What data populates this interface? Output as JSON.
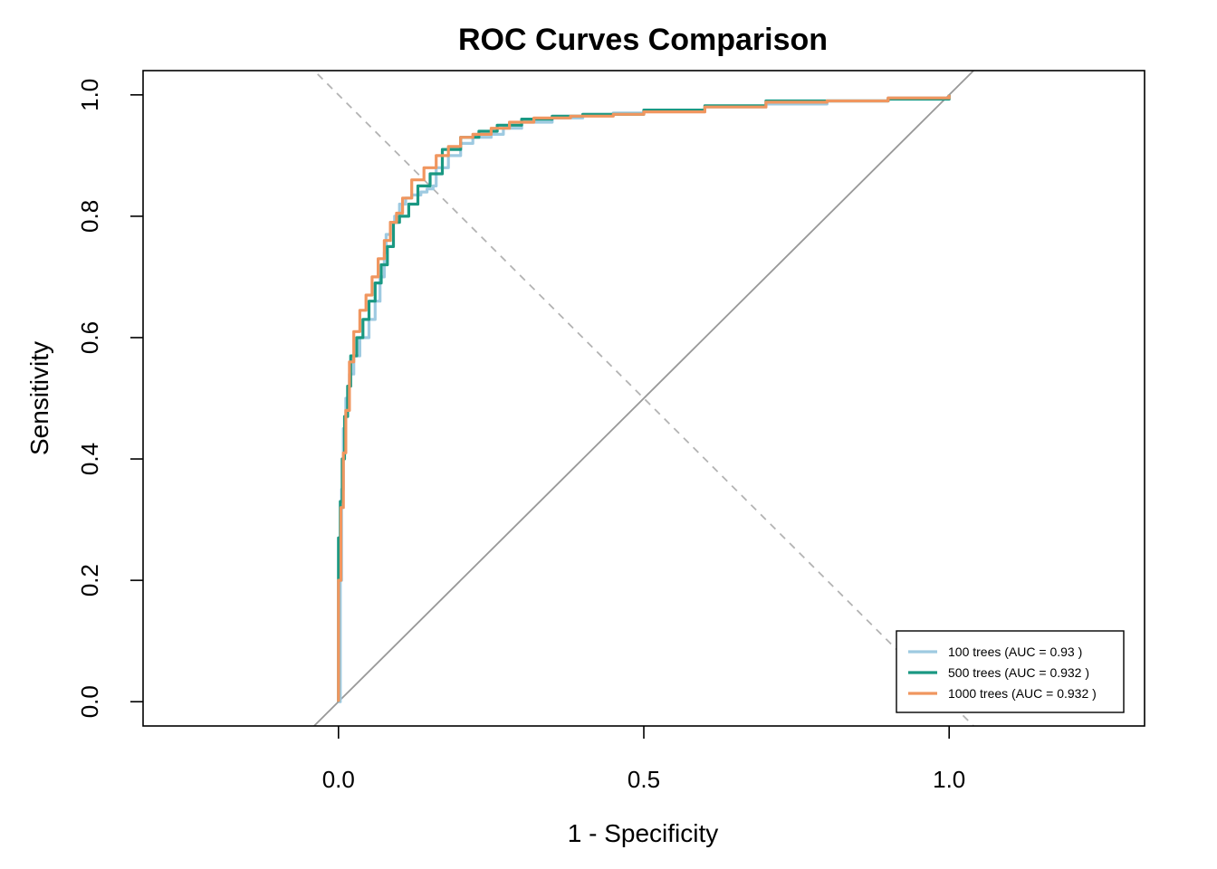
{
  "chart_data": {
    "type": "line",
    "title": "ROC Curves Comparison",
    "xlabel": "1 - Specificity",
    "ylabel": "Sensitivity",
    "xlim": [
      -0.32,
      1.32
    ],
    "ylim": [
      -0.04,
      1.04
    ],
    "x_ticks": [
      0.0,
      0.5,
      1.0
    ],
    "x_tick_labels": [
      "0.0",
      "0.5",
      "1.0"
    ],
    "y_ticks": [
      0.0,
      0.2,
      0.4,
      0.6,
      0.8,
      1.0
    ],
    "y_tick_labels": [
      "0.0",
      "0.2",
      "0.4",
      "0.6",
      "0.8",
      "1.0"
    ],
    "grid": false,
    "legend_position": "bottom-right",
    "reference_lines": [
      {
        "kind": "diagonal",
        "from": [
          -0.05,
          -0.05
        ],
        "to": [
          1.05,
          1.05
        ],
        "color": "#999999",
        "style": "solid"
      },
      {
        "kind": "anti-diagonal",
        "from": [
          -0.05,
          1.05
        ],
        "to": [
          1.05,
          -0.05
        ],
        "color": "#b3b3b3",
        "style": "dashed"
      }
    ],
    "series": [
      {
        "name": "100 trees (AUC = 0.93 )",
        "color": "#9ecae1",
        "x": [
          0,
          0.003,
          0.005,
          0.008,
          0.012,
          0.018,
          0.025,
          0.035,
          0.05,
          0.06,
          0.068,
          0.075,
          0.078,
          0.085,
          0.092,
          0.1,
          0.11,
          0.12,
          0.135,
          0.145,
          0.155,
          0.16,
          0.18,
          0.2,
          0.22,
          0.25,
          0.27,
          0.3,
          0.35,
          0.4,
          0.45,
          0.5,
          0.6,
          0.7,
          0.8,
          0.9,
          1.0
        ],
        "y": [
          0,
          0.2,
          0.35,
          0.45,
          0.5,
          0.54,
          0.57,
          0.6,
          0.63,
          0.66,
          0.7,
          0.74,
          0.77,
          0.79,
          0.8,
          0.82,
          0.83,
          0.835,
          0.84,
          0.845,
          0.85,
          0.88,
          0.9,
          0.92,
          0.93,
          0.935,
          0.945,
          0.955,
          0.962,
          0.968,
          0.97,
          0.973,
          0.98,
          0.985,
          0.99,
          0.995,
          1.0
        ]
      },
      {
        "name": "500 trees (AUC = 0.932 )",
        "color": "#1a9882",
        "x": [
          0,
          0,
          0.003,
          0.006,
          0.01,
          0.015,
          0.02,
          0.03,
          0.04,
          0.05,
          0.06,
          0.07,
          0.08,
          0.09,
          0.1,
          0.115,
          0.13,
          0.15,
          0.17,
          0.2,
          0.23,
          0.26,
          0.3,
          0.35,
          0.4,
          0.5,
          0.6,
          0.7,
          0.8,
          0.9,
          1.0
        ],
        "y": [
          0,
          0.27,
          0.33,
          0.4,
          0.47,
          0.52,
          0.57,
          0.6,
          0.63,
          0.66,
          0.69,
          0.72,
          0.75,
          0.79,
          0.8,
          0.82,
          0.85,
          0.87,
          0.91,
          0.93,
          0.94,
          0.95,
          0.96,
          0.965,
          0.968,
          0.975,
          0.982,
          0.99,
          0.99,
          0.993,
          1.0
        ]
      },
      {
        "name": "1000 trees (AUC = 0.932 )",
        "color": "#f0965f",
        "x": [
          0,
          0,
          0.004,
          0.008,
          0.012,
          0.018,
          0.025,
          0.035,
          0.045,
          0.055,
          0.065,
          0.075,
          0.085,
          0.095,
          0.105,
          0.12,
          0.14,
          0.16,
          0.18,
          0.2,
          0.22,
          0.25,
          0.28,
          0.32,
          0.38,
          0.45,
          0.5,
          0.6,
          0.7,
          0.8,
          0.9,
          1.0
        ],
        "y": [
          0,
          0.2,
          0.32,
          0.41,
          0.48,
          0.56,
          0.61,
          0.645,
          0.67,
          0.7,
          0.73,
          0.76,
          0.79,
          0.805,
          0.83,
          0.86,
          0.88,
          0.9,
          0.915,
          0.93,
          0.935,
          0.945,
          0.955,
          0.962,
          0.965,
          0.968,
          0.972,
          0.98,
          0.988,
          0.99,
          0.995,
          1.0
        ]
      }
    ]
  }
}
